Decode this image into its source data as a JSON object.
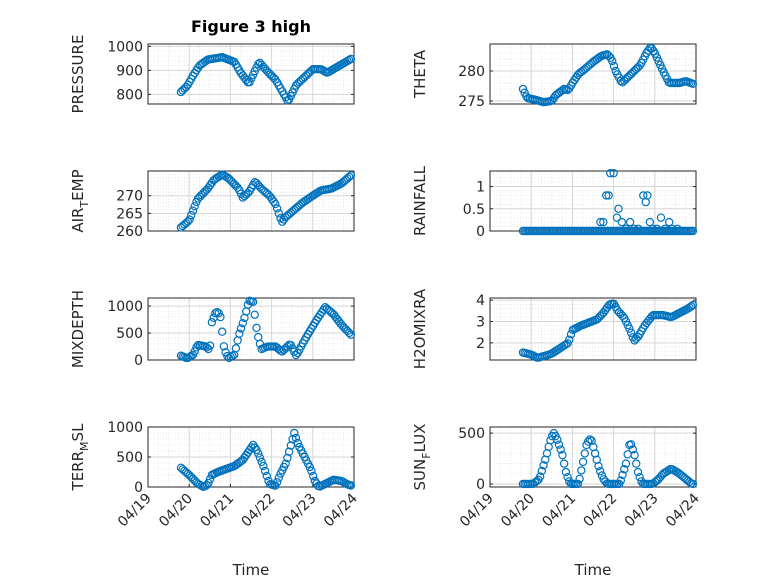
{
  "figure": {
    "title": "Figure 3 high",
    "marker_color": "#0072BD"
  },
  "chart_data": [
    {
      "type": "scatter",
      "id": "pressure",
      "ylabel": "PRESSURE",
      "ylim": [
        760,
        1010
      ],
      "yticks": [
        800,
        900,
        1000
      ],
      "xlim": [
        0,
        5
      ],
      "xticks": [],
      "start_day": 0.8,
      "end_day": 4.95,
      "profile": [
        [
          0.8,
          810
        ],
        [
          0.95,
          835
        ],
        [
          1.1,
          880
        ],
        [
          1.25,
          920
        ],
        [
          1.45,
          945
        ],
        [
          1.8,
          955
        ],
        [
          2.1,
          935
        ],
        [
          2.25,
          890
        ],
        [
          2.45,
          845
        ],
        [
          2.6,
          900
        ],
        [
          2.7,
          935
        ],
        [
          2.9,
          895
        ],
        [
          3.1,
          860
        ],
        [
          3.3,
          800
        ],
        [
          3.4,
          770
        ],
        [
          3.6,
          840
        ],
        [
          3.85,
          880
        ],
        [
          4.0,
          905
        ],
        [
          4.2,
          905
        ],
        [
          4.35,
          890
        ],
        [
          4.6,
          915
        ],
        [
          4.8,
          935
        ],
        [
          4.95,
          950
        ]
      ]
    },
    {
      "type": "scatter",
      "id": "theta",
      "ylabel": "THETA",
      "ylim": [
        274.5,
        284.5
      ],
      "yticks": [
        275,
        280
      ],
      "xlim": [
        0,
        5
      ],
      "xticks": [],
      "start_day": 0.8,
      "end_day": 4.95,
      "profile": [
        [
          0.8,
          277
        ],
        [
          0.9,
          275.5
        ],
        [
          1.1,
          275.2
        ],
        [
          1.3,
          274.8
        ],
        [
          1.5,
          275
        ],
        [
          1.6,
          276
        ],
        [
          1.8,
          277
        ],
        [
          1.9,
          276.8
        ],
        [
          2.0,
          278
        ],
        [
          2.15,
          279.5
        ],
        [
          2.3,
          280.3
        ],
        [
          2.5,
          281.5
        ],
        [
          2.7,
          282.5
        ],
        [
          2.85,
          282.8
        ],
        [
          2.95,
          282
        ],
        [
          3.05,
          280
        ],
        [
          3.2,
          278
        ],
        [
          3.35,
          279
        ],
        [
          3.5,
          280
        ],
        [
          3.65,
          281
        ],
        [
          3.8,
          283
        ],
        [
          3.9,
          284
        ],
        [
          4.0,
          283
        ],
        [
          4.2,
          280
        ],
        [
          4.35,
          278
        ],
        [
          4.6,
          278
        ],
        [
          4.75,
          278.3
        ],
        [
          4.95,
          277.8
        ]
      ]
    },
    {
      "type": "scatter",
      "id": "air_temp",
      "ylabel": "AIR",
      "ylabel_sub": "T",
      "ylabel_suffix": "EMP",
      "ylim": [
        260,
        277
      ],
      "yticks": [
        260,
        265,
        270
      ],
      "xlim": [
        0,
        5
      ],
      "xticks": [],
      "start_day": 0.8,
      "end_day": 4.95,
      "profile": [
        [
          0.8,
          261
        ],
        [
          1.0,
          263
        ],
        [
          1.1,
          266
        ],
        [
          1.2,
          269
        ],
        [
          1.45,
          272
        ],
        [
          1.6,
          274.5
        ],
        [
          1.8,
          276
        ],
        [
          1.95,
          275
        ],
        [
          2.2,
          272
        ],
        [
          2.3,
          269.5
        ],
        [
          2.45,
          271
        ],
        [
          2.6,
          274
        ],
        [
          2.75,
          272
        ],
        [
          2.95,
          270
        ],
        [
          3.1,
          267.5
        ],
        [
          3.25,
          262.5
        ],
        [
          3.35,
          264
        ],
        [
          3.55,
          266
        ],
        [
          3.75,
          268
        ],
        [
          4.0,
          270
        ],
        [
          4.2,
          271.5
        ],
        [
          4.45,
          272
        ],
        [
          4.7,
          273.5
        ],
        [
          4.95,
          276
        ]
      ]
    },
    {
      "type": "scatter",
      "id": "rainfall",
      "ylabel": "RAINFALL",
      "ylim": [
        0,
        1.35
      ],
      "yticks": [
        0,
        0.5,
        1
      ],
      "ytick_labels": [
        "0",
        "0.5",
        "1"
      ],
      "xlim": [
        0,
        5
      ],
      "xticks": [],
      "start_day": 0.8,
      "end_day": 4.95,
      "baseline": 0,
      "events": [
        [
          2.68,
          0.2
        ],
        [
          2.75,
          0.2
        ],
        [
          2.82,
          0.8
        ],
        [
          2.88,
          0.8
        ],
        [
          2.92,
          1.3
        ],
        [
          3.0,
          1.3
        ],
        [
          3.08,
          0.3
        ],
        [
          3.12,
          0.5
        ],
        [
          3.2,
          0.2
        ],
        [
          3.3,
          0.05
        ],
        [
          3.4,
          0.2
        ],
        [
          3.5,
          0.05
        ],
        [
          3.6,
          0.05
        ],
        [
          3.72,
          0.8
        ],
        [
          3.78,
          0.65
        ],
        [
          3.82,
          0.8
        ],
        [
          3.88,
          0.2
        ],
        [
          3.95,
          0.05
        ],
        [
          4.05,
          0.05
        ],
        [
          4.15,
          0.3
        ],
        [
          4.25,
          0.05
        ],
        [
          4.35,
          0.2
        ],
        [
          4.42,
          0.05
        ],
        [
          4.55,
          0.05
        ]
      ]
    },
    {
      "type": "scatter",
      "id": "mixdepth",
      "ylabel": "MIXDEPTH",
      "ylim": [
        0,
        1150
      ],
      "yticks": [
        0,
        500,
        1000
      ],
      "xlim": [
        0,
        5
      ],
      "xticks": [],
      "start_day": 0.8,
      "end_day": 4.95,
      "profile": [
        [
          0.8,
          80
        ],
        [
          0.95,
          30
        ],
        [
          1.1,
          100
        ],
        [
          1.2,
          280
        ],
        [
          1.4,
          250
        ],
        [
          1.5,
          180
        ],
        [
          1.55,
          700
        ],
        [
          1.65,
          900
        ],
        [
          1.75,
          850
        ],
        [
          1.85,
          200
        ],
        [
          1.95,
          30
        ],
        [
          2.1,
          100
        ],
        [
          2.2,
          450
        ],
        [
          2.35,
          800
        ],
        [
          2.45,
          1100
        ],
        [
          2.55,
          1080
        ],
        [
          2.65,
          500
        ],
        [
          2.75,
          200
        ],
        [
          2.9,
          250
        ],
        [
          3.1,
          250
        ],
        [
          3.25,
          150
        ],
        [
          3.45,
          300
        ],
        [
          3.6,
          80
        ],
        [
          3.75,
          300
        ],
        [
          3.9,
          500
        ],
        [
          4.1,
          750
        ],
        [
          4.3,
          980
        ],
        [
          4.5,
          850
        ],
        [
          4.7,
          650
        ],
        [
          4.95,
          450
        ]
      ]
    },
    {
      "type": "scatter",
      "id": "h2omixra",
      "ylabel": "H2OMIXRA",
      "ylim": [
        1.2,
        4.1
      ],
      "yticks": [
        2,
        3,
        4
      ],
      "xlim": [
        0,
        5
      ],
      "xticks": [],
      "start_day": 0.8,
      "end_day": 4.95,
      "profile": [
        [
          0.8,
          1.55
        ],
        [
          1.0,
          1.45
        ],
        [
          1.15,
          1.3
        ],
        [
          1.35,
          1.4
        ],
        [
          1.5,
          1.5
        ],
        [
          1.7,
          1.75
        ],
        [
          1.9,
          2.0
        ],
        [
          2.0,
          2.6
        ],
        [
          2.2,
          2.8
        ],
        [
          2.4,
          2.95
        ],
        [
          2.6,
          3.1
        ],
        [
          2.75,
          3.4
        ],
        [
          2.9,
          3.8
        ],
        [
          3.0,
          3.85
        ],
        [
          3.1,
          3.5
        ],
        [
          3.25,
          3.2
        ],
        [
          3.4,
          2.6
        ],
        [
          3.5,
          2.1
        ],
        [
          3.6,
          2.3
        ],
        [
          3.75,
          2.8
        ],
        [
          3.95,
          3.3
        ],
        [
          4.2,
          3.3
        ],
        [
          4.4,
          3.2
        ],
        [
          4.6,
          3.4
        ],
        [
          4.8,
          3.6
        ],
        [
          4.95,
          3.8
        ]
      ]
    },
    {
      "type": "scatter",
      "id": "terr_msl",
      "ylabel": "TERR",
      "ylabel_sub": "M",
      "ylabel_suffix": "SL",
      "ylim": [
        0,
        1000
      ],
      "yticks": [
        0,
        500,
        1000
      ],
      "xlim": [
        0,
        5
      ],
      "xticks": [
        0,
        1,
        2,
        3,
        4,
        5
      ],
      "xtick_labels": [
        "04/19",
        "04/20",
        "04/21",
        "04/22",
        "04/23",
        "04/24"
      ],
      "xlabel": "Time",
      "start_day": 0.8,
      "end_day": 4.95,
      "profile": [
        [
          0.8,
          320
        ],
        [
          1.0,
          200
        ],
        [
          1.2,
          60
        ],
        [
          1.35,
          0
        ],
        [
          1.45,
          40
        ],
        [
          1.55,
          200
        ],
        [
          1.7,
          250
        ],
        [
          1.9,
          300
        ],
        [
          2.1,
          350
        ],
        [
          2.3,
          450
        ],
        [
          2.45,
          600
        ],
        [
          2.55,
          700
        ],
        [
          2.65,
          600
        ],
        [
          2.8,
          350
        ],
        [
          2.95,
          50
        ],
        [
          3.1,
          20
        ],
        [
          3.2,
          200
        ],
        [
          3.35,
          400
        ],
        [
          3.45,
          650
        ],
        [
          3.55,
          900
        ],
        [
          3.65,
          700
        ],
        [
          3.8,
          500
        ],
        [
          3.95,
          300
        ],
        [
          4.05,
          100
        ],
        [
          4.15,
          0
        ],
        [
          4.3,
          50
        ],
        [
          4.5,
          120
        ],
        [
          4.7,
          100
        ],
        [
          4.85,
          40
        ],
        [
          4.95,
          20
        ]
      ]
    },
    {
      "type": "scatter",
      "id": "sun_flux",
      "ylabel": "SUN",
      "ylabel_sub": "F",
      "ylabel_suffix": "LUX",
      "ylim": [
        -30,
        560
      ],
      "yticks": [
        0,
        500
      ],
      "xlim": [
        0,
        5
      ],
      "xticks": [
        0,
        1,
        2,
        3,
        4,
        5
      ],
      "xtick_labels": [
        "04/19",
        "04/20",
        "04/21",
        "04/22",
        "04/23",
        "04/24"
      ],
      "xlabel": "Time",
      "start_day": 0.8,
      "end_day": 4.95,
      "profile": [
        [
          0.8,
          0
        ],
        [
          1.05,
          0
        ],
        [
          1.2,
          50
        ],
        [
          1.35,
          250
        ],
        [
          1.48,
          450
        ],
        [
          1.55,
          500
        ],
        [
          1.62,
          450
        ],
        [
          1.75,
          300
        ],
        [
          1.85,
          100
        ],
        [
          1.95,
          0
        ],
        [
          2.15,
          0
        ],
        [
          2.25,
          200
        ],
        [
          2.35,
          400
        ],
        [
          2.45,
          450
        ],
        [
          2.55,
          300
        ],
        [
          2.65,
          150
        ],
        [
          2.75,
          50
        ],
        [
          2.85,
          0
        ],
        [
          3.15,
          0
        ],
        [
          3.3,
          200
        ],
        [
          3.4,
          420
        ],
        [
          3.5,
          300
        ],
        [
          3.6,
          100
        ],
        [
          3.7,
          0
        ],
        [
          3.95,
          0
        ],
        [
          4.1,
          50
        ],
        [
          4.2,
          100
        ],
        [
          4.4,
          150
        ],
        [
          4.6,
          100
        ],
        [
          4.75,
          50
        ],
        [
          4.9,
          0
        ]
      ]
    }
  ]
}
